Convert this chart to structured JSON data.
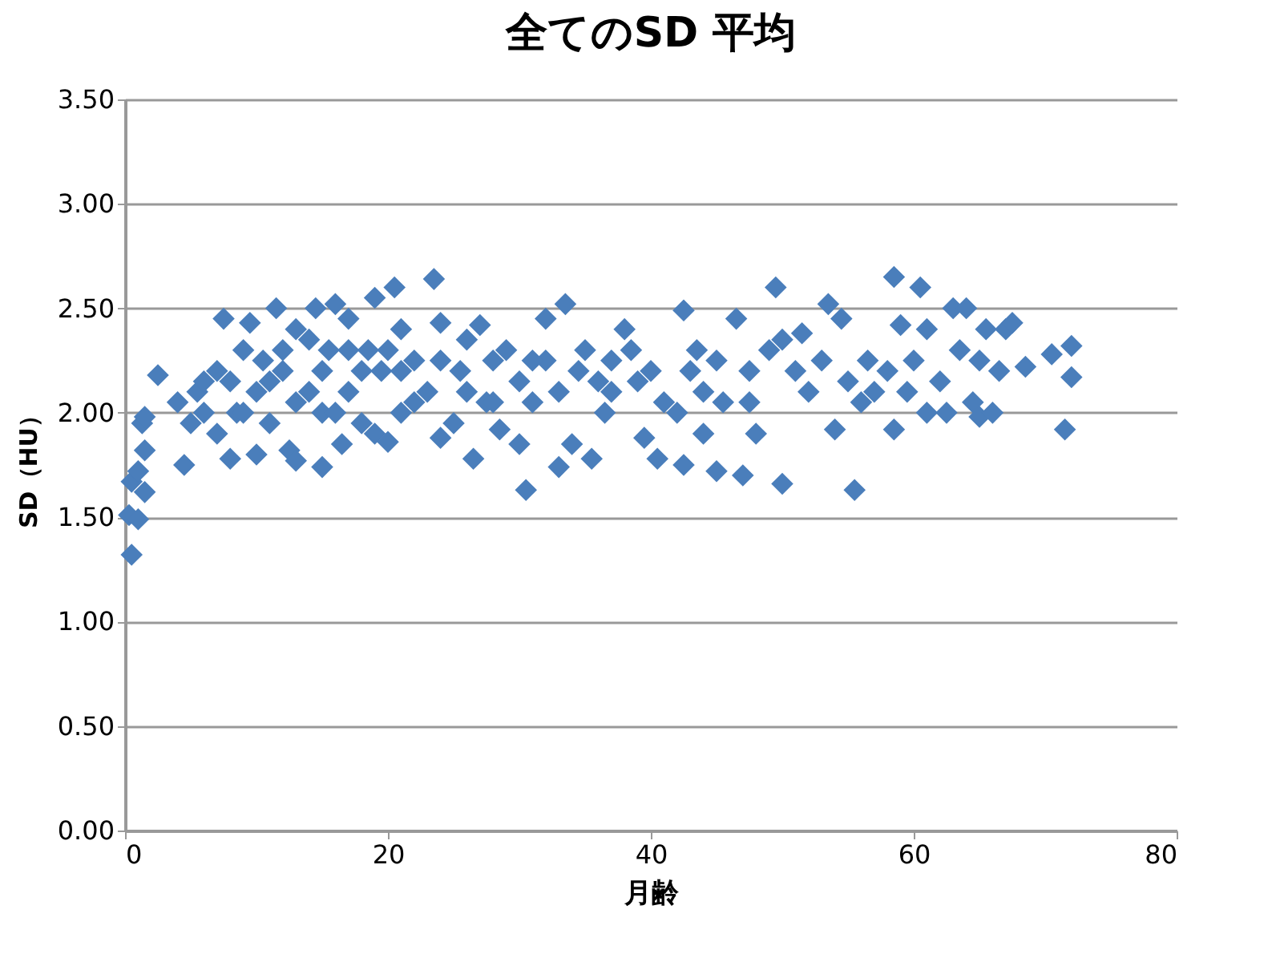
{
  "chart_data": {
    "type": "scatter",
    "title": "全てのSD 平均",
    "xlabel": "月齢",
    "ylabel": "SD（HU）",
    "x": [
      0.5,
      0.3,
      1,
      0.5,
      1.5,
      1,
      1.5,
      1.3,
      1.5,
      2.5,
      4.5,
      4,
      5,
      5.5,
      6,
      7,
      7.5,
      8,
      8.5,
      9,
      9.5,
      10,
      10,
      10.5,
      11,
      11.5,
      12,
      12.5,
      13,
      13,
      14,
      14.5,
      15,
      15,
      15.5,
      16,
      16.5,
      17,
      17,
      18,
      18.5,
      19,
      19,
      19.5,
      20,
      20.5,
      21,
      21,
      22,
      23,
      23.5,
      24,
      24,
      25,
      25.5,
      26,
      26.5,
      27,
      27.5,
      28,
      28.5,
      29,
      30,
      30.5,
      30,
      31,
      32,
      32,
      33,
      33.5,
      34,
      34.5,
      35,
      35.5,
      36,
      36.5,
      37,
      38,
      38.5,
      39,
      39.5,
      40,
      40.5,
      41,
      42,
      42.5,
      42.5,
      43,
      43.5,
      44,
      44,
      45,
      45,
      45.5,
      46.5,
      47,
      47.5,
      47.5,
      48,
      49,
      49.5,
      50,
      50,
      51,
      51.5,
      52,
      53,
      53.5,
      54,
      54.5,
      55,
      55.5,
      56,
      56.5,
      57,
      58,
      58.5,
      58.5,
      59,
      59.5,
      60,
      60.5,
      61,
      61,
      62,
      62.5,
      63,
      63.5,
      64,
      64.5,
      65,
      65,
      65.5,
      66,
      66.5,
      67,
      67.5,
      68.5,
      70.5,
      71.5,
      72,
      72,
      6,
      7,
      8,
      9,
      11,
      12,
      13,
      14,
      15,
      16,
      17,
      18,
      20,
      21,
      22,
      24,
      26,
      28,
      31,
      33,
      37
    ],
    "series": [
      {
        "color": "#4a7ebb",
        "values": [
          1.32,
          1.51,
          1.49,
          1.67,
          1.62,
          1.72,
          1.82,
          1.95,
          1.98,
          2.18,
          1.75,
          2.05,
          1.95,
          2.1,
          2.15,
          2.2,
          2.45,
          1.78,
          2.0,
          2.3,
          2.43,
          1.8,
          2.1,
          2.25,
          1.95,
          2.5,
          2.2,
          1.82,
          1.77,
          2.05,
          2.35,
          2.5,
          1.74,
          2.0,
          2.3,
          2.52,
          1.85,
          2.1,
          2.45,
          1.95,
          2.3,
          2.55,
          1.9,
          2.2,
          1.86,
          2.6,
          2.4,
          2.0,
          2.25,
          2.1,
          2.64,
          1.88,
          2.43,
          1.95,
          2.2,
          2.35,
          1.78,
          2.42,
          2.05,
          2.25,
          1.92,
          2.3,
          1.85,
          1.63,
          2.15,
          2.05,
          2.45,
          2.25,
          1.74,
          2.52,
          1.85,
          2.2,
          2.3,
          1.78,
          2.15,
          2.0,
          2.1,
          2.4,
          2.3,
          2.15,
          1.88,
          2.2,
          1.78,
          2.05,
          2.0,
          1.75,
          2.49,
          2.2,
          2.3,
          1.9,
          2.1,
          1.72,
          2.25,
          2.05,
          2.45,
          1.7,
          2.2,
          2.05,
          1.9,
          2.3,
          2.6,
          1.66,
          2.35,
          2.2,
          2.38,
          2.1,
          2.25,
          2.52,
          1.92,
          2.45,
          2.15,
          1.63,
          2.05,
          2.25,
          2.1,
          2.2,
          2.65,
          1.92,
          2.42,
          2.1,
          2.25,
          2.6,
          2.0,
          2.4,
          2.15,
          2.0,
          2.5,
          2.3,
          2.5,
          2.05,
          1.98,
          2.25,
          2.4,
          2.0,
          2.2,
          2.4,
          2.43,
          2.22,
          2.28,
          1.92,
          2.32,
          2.17,
          2.0,
          1.9,
          2.15,
          2.0,
          2.15,
          2.3,
          2.4,
          2.1,
          2.2,
          2.0,
          2.3,
          2.2,
          2.3,
          2.2,
          2.05,
          2.25,
          2.1,
          2.05,
          2.25,
          2.1,
          2.25
        ]
      }
    ],
    "xlim": [
      0,
      80
    ],
    "xticks": [
      0,
      20,
      40,
      60,
      80
    ],
    "ylim": [
      0,
      3.5
    ],
    "yticks": [
      {
        "value": 0,
        "label": "0.00"
      },
      {
        "value": 0.5,
        "label": "0.50"
      },
      {
        "value": 1,
        "label": "1.00"
      },
      {
        "value": 1.5,
        "label": "1.50"
      },
      {
        "value": 2,
        "label": "2.00"
      },
      {
        "value": 2.5,
        "label": "2.50"
      },
      {
        "value": 3,
        "label": "3.00"
      },
      {
        "value": 3.5,
        "label": "3.50"
      }
    ],
    "grid": "y",
    "marker": "diamond"
  }
}
